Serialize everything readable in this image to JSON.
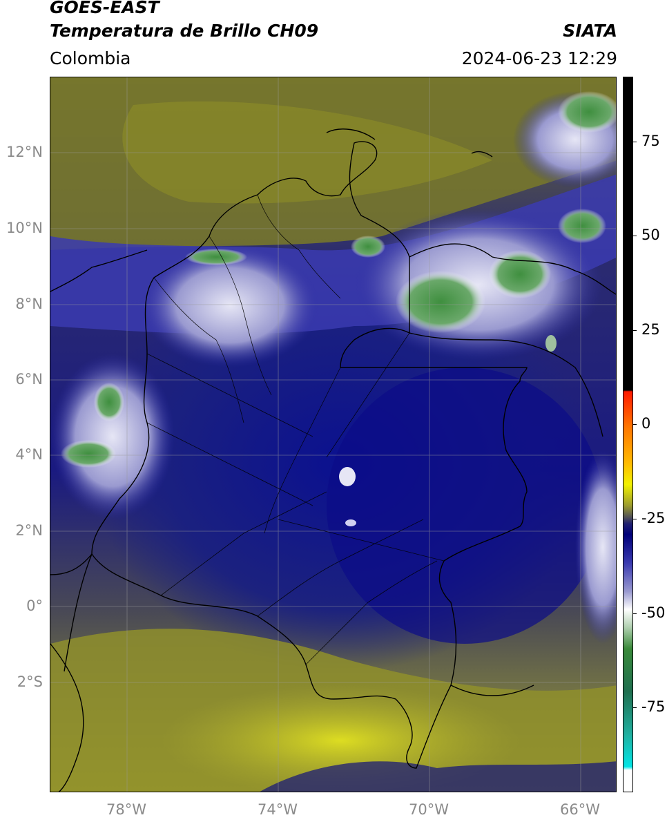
{
  "header": {
    "line1": "GOES-EAST",
    "line2": "Temperatura de Brillo CH09",
    "region": "Colombia",
    "organization": "SIATA",
    "timestamp": "2024-06-23 12:29"
  },
  "axes": {
    "latitude_labels": [
      "12°N",
      "10°N",
      "8°N",
      "6°N",
      "4°N",
      "2°N",
      "0°",
      "2°S"
    ],
    "longitude_labels": [
      "78°W",
      "74°W",
      "70°W",
      "66°W"
    ]
  },
  "colorbar": {
    "tick_labels": [
      "75",
      "50",
      "25",
      "0",
      "-25",
      "-50",
      "-75"
    ],
    "colors": {
      "black": "#000000",
      "red": "#ff2a00",
      "orange": "#ff9900",
      "yellow": "#f2f200",
      "olive": "#6b6b22",
      "navy": "#0a0a7a",
      "white": "#ffffff",
      "green": "#3e8f3e",
      "teal": "#20b0a0",
      "cyan": "#00e5e5"
    }
  },
  "map_colors": {
    "olive_dark": "#5a5a30",
    "olive_mid": "#7d7d2a",
    "yellow": "#c8c82a",
    "navy": "#0d1580",
    "navy_light": "#3a3ab0",
    "cloud_white": "#dcdcf0",
    "cloud_green": "#4a9a4a"
  }
}
